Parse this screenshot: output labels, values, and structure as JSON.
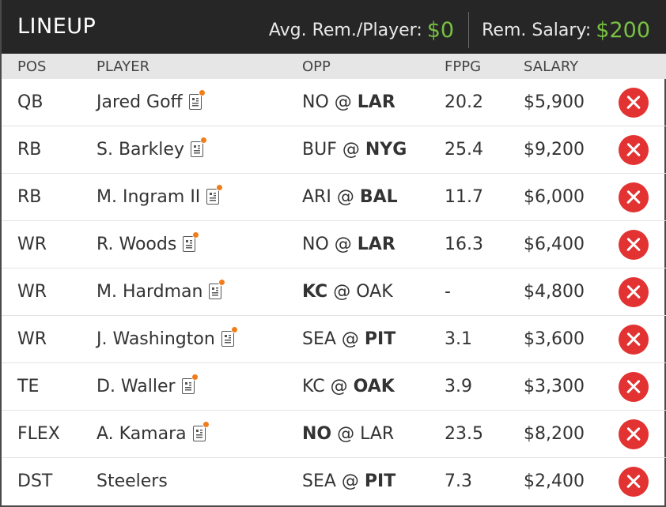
{
  "header": {
    "title": "LINEUP",
    "avg_label": "Avg. Rem./Player:",
    "avg_value": "$0",
    "rem_label": "Rem. Salary:",
    "rem_value": "$200"
  },
  "columns": {
    "pos": "POS",
    "player": "PLAYER",
    "opp": "OPP",
    "fppg": "FPPG",
    "salary": "SALARY"
  },
  "colors": {
    "header_bg": "#262626",
    "money_green": "#78c142",
    "remove_red": "#e23232",
    "news_dot_orange": "#f07d1a"
  },
  "rows": [
    {
      "pos": "QB",
      "player": "Jared Goff",
      "news": true,
      "away": "NO",
      "at": "@",
      "home": "LAR",
      "bold": "home",
      "fppg": "20.2",
      "salary": "$5,900"
    },
    {
      "pos": "RB",
      "player": "S. Barkley",
      "news": true,
      "away": "BUF",
      "at": "@",
      "home": "NYG",
      "bold": "home",
      "fppg": "25.4",
      "salary": "$9,200"
    },
    {
      "pos": "RB",
      "player": "M. Ingram II",
      "news": true,
      "away": "ARI",
      "at": "@",
      "home": "BAL",
      "bold": "home",
      "fppg": "11.7",
      "salary": "$6,000"
    },
    {
      "pos": "WR",
      "player": "R. Woods",
      "news": true,
      "away": "NO",
      "at": "@",
      "home": "LAR",
      "bold": "home",
      "fppg": "16.3",
      "salary": "$6,400"
    },
    {
      "pos": "WR",
      "player": "M. Hardman",
      "news": true,
      "away": "KC",
      "at": "@",
      "home": "OAK",
      "bold": "away",
      "fppg": "-",
      "salary": "$4,800"
    },
    {
      "pos": "WR",
      "player": "J. Washington",
      "news": true,
      "away": "SEA",
      "at": "@",
      "home": "PIT",
      "bold": "home",
      "fppg": "3.1",
      "salary": "$3,600"
    },
    {
      "pos": "TE",
      "player": "D. Waller",
      "news": true,
      "away": "KC",
      "at": "@",
      "home": "OAK",
      "bold": "home",
      "fppg": "3.9",
      "salary": "$3,300"
    },
    {
      "pos": "FLEX",
      "player": "A. Kamara",
      "news": true,
      "away": "NO",
      "at": "@",
      "home": "LAR",
      "bold": "away",
      "fppg": "23.5",
      "salary": "$8,200"
    },
    {
      "pos": "DST",
      "player": "Steelers",
      "news": false,
      "away": "SEA",
      "at": "@",
      "home": "PIT",
      "bold": "home",
      "fppg": "7.3",
      "salary": "$2,400"
    }
  ]
}
